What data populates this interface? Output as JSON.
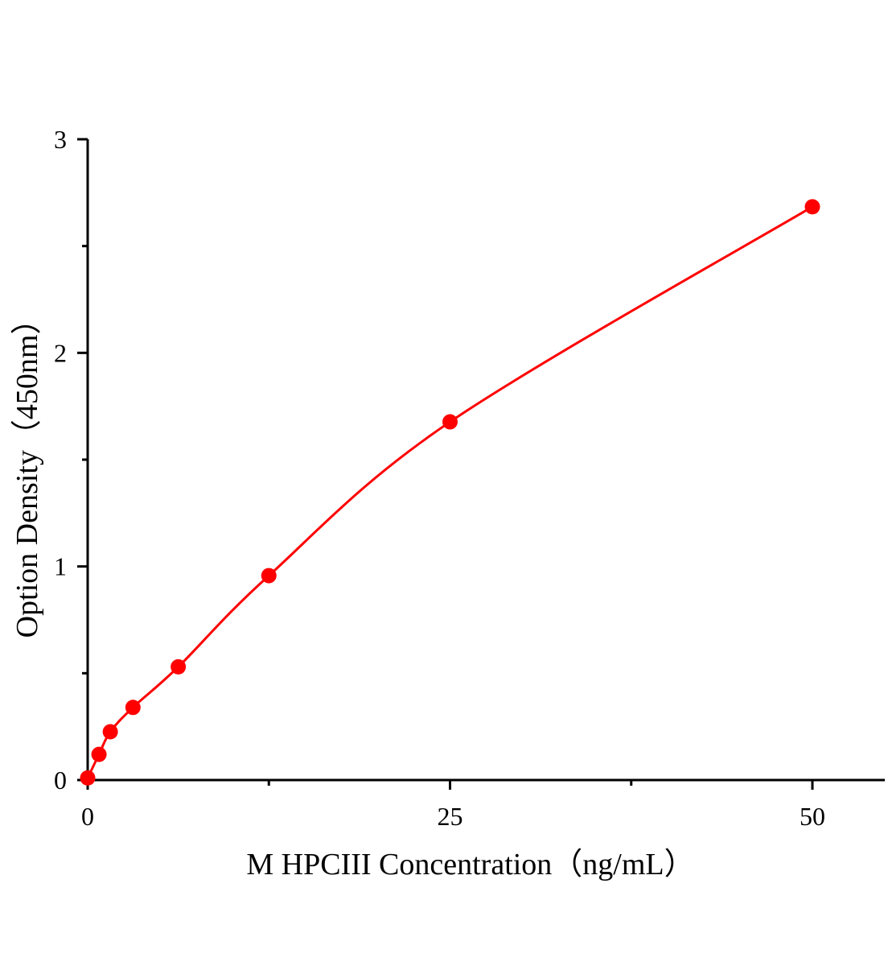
{
  "chart_data": {
    "type": "scatter",
    "title": "",
    "xlabel": "M HPCIII Concentration（ng/mL）",
    "ylabel": "Option Density（450nm）",
    "xlim": [
      0,
      55
    ],
    "ylim": [
      0,
      3
    ],
    "x_ticks": [
      0,
      25,
      50
    ],
    "x_minor_ticks": [
      12.5,
      37.5
    ],
    "y_ticks": [
      0,
      1,
      2,
      3
    ],
    "y_minor_ticks": [
      0.5,
      1.5,
      2.5
    ],
    "grid": false,
    "color": "#ff0000",
    "series": [
      {
        "x": [
          0,
          0.78,
          1.56,
          3.125,
          6.25,
          12.5,
          25,
          50
        ],
        "y": [
          0.01,
          0.12,
          0.226,
          0.34,
          0.53,
          0.957,
          1.677,
          2.684
        ],
        "fit_line": true
      }
    ]
  }
}
